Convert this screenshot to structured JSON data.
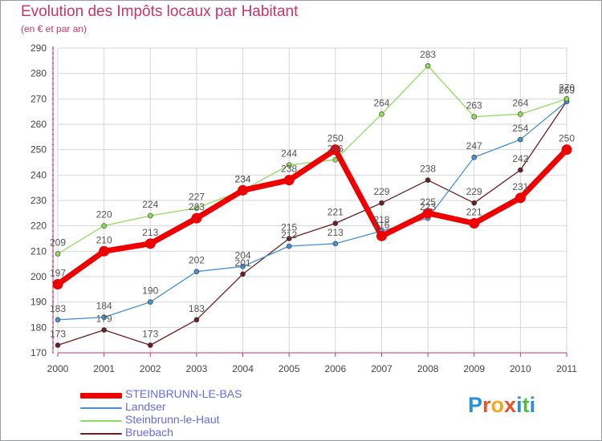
{
  "title": "Evolution des Impôts locaux par Habitant",
  "subtitle": "(en € et par an)",
  "logo": {
    "text": "Proxiti",
    "letter_colors": [
      "#2a8fd6",
      "#e8542a",
      "#f0a81c",
      "#e8542a",
      "#2a8fd6",
      "#5ab94c",
      "#2a8fd6"
    ]
  },
  "chart_data": {
    "type": "line",
    "x": [
      "2000",
      "2001",
      "2002",
      "2003",
      "2004",
      "2005",
      "2006",
      "2007",
      "2008",
      "2009",
      "2010",
      "2011"
    ],
    "ylim": [
      170,
      290
    ],
    "yticks": [
      "170",
      "180",
      "190",
      "200",
      "210",
      "220",
      "230",
      "240",
      "250",
      "260",
      "270",
      "280",
      "290"
    ],
    "grid": true,
    "legend_position": "bottom-left",
    "series": [
      {
        "name": "Bruebach",
        "color": "#6b1f24",
        "values": [
          173,
          179,
          173,
          183,
          201,
          215,
          221,
          229,
          238,
          229,
          242,
          269
        ],
        "labels": [
          "173",
          "179",
          "173",
          "183",
          "201",
          "215",
          "221",
          "229",
          "238",
          "229",
          "242",
          "269"
        ]
      },
      {
        "name": "Landser",
        "color": "#4a90d0",
        "values": [
          183,
          184,
          190,
          202,
          204,
          212,
          213,
          218,
          223,
          247,
          254,
          269
        ],
        "labels": [
          "183",
          "184",
          "190",
          "202",
          "204",
          "212",
          "213",
          "218",
          "223",
          "247",
          "254",
          "269"
        ]
      },
      {
        "name": "Steinbrunn-le-Haut",
        "color": "#8fdc5c",
        "values": [
          209,
          220,
          224,
          227,
          234,
          244,
          246,
          264,
          283,
          263,
          264,
          270
        ],
        "labels": [
          "209",
          "220",
          "224",
          "227",
          "234",
          "244",
          "246",
          "264",
          "283",
          "263",
          "264",
          "270"
        ]
      },
      {
        "name": "STEINBRUNN-LE-BAS",
        "color": "#ee0000",
        "values": [
          197,
          210,
          213,
          223,
          234,
          238,
          250,
          216,
          225,
          221,
          231,
          250
        ],
        "labels": [
          "197",
          "210",
          "213",
          "223",
          "234",
          "238",
          "250",
          "216",
          "225",
          "221",
          "231",
          "250"
        ]
      }
    ],
    "legend": [
      "STEINBRUNN-LE-BAS",
      "Landser",
      "Steinbrunn-le-Haut",
      "Bruebach"
    ]
  }
}
